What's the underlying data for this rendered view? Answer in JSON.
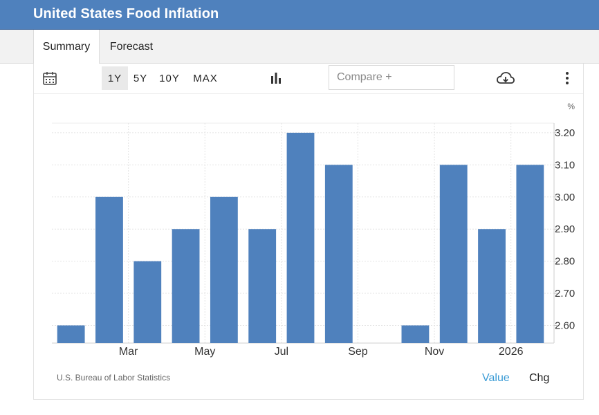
{
  "header": {
    "title": "United States Food Inflation"
  },
  "tabs": [
    {
      "label": "Summary"
    },
    {
      "label": "Forecast"
    }
  ],
  "toolbar": {
    "ranges": [
      "1Y",
      "5Y",
      "10Y",
      "MAX"
    ],
    "active_range": "1Y",
    "compare_placeholder": "Compare +"
  },
  "footer": {
    "source": "U.S. Bureau of Labor Statistics",
    "value_label": "Value",
    "chg_label": "Chg"
  },
  "colors": {
    "bar": "#4f81bd",
    "header": "#4f81bd",
    "link": "#3a9bd5"
  },
  "chart_data": {
    "type": "bar",
    "unit_label": "%",
    "categories": [
      "Jan 2025",
      "Feb 2025",
      "Mar 2025",
      "Apr 2025",
      "May 2025",
      "Jun 2025",
      "Jul 2025",
      "Aug 2025",
      "Sep 2025",
      "Oct 2025",
      "Nov 2025",
      "Dec 2025",
      "Jan 2026"
    ],
    "values": [
      2.6,
      3.0,
      2.8,
      2.9,
      3.0,
      2.9,
      3.2,
      3.1,
      null,
      2.6,
      3.1,
      2.9,
      3.1
    ],
    "x_tick_labels": [
      {
        "index": 1.5,
        "label": "Mar"
      },
      {
        "index": 3.5,
        "label": "May"
      },
      {
        "index": 5.5,
        "label": "Jul"
      },
      {
        "index": 7.5,
        "label": "Sep"
      },
      {
        "index": 9.5,
        "label": "Nov"
      },
      {
        "index": 11.5,
        "label": "2026"
      }
    ],
    "y_ticks": [
      "2.60",
      "2.70",
      "2.80",
      "2.90",
      "3.00",
      "3.10",
      "3.20"
    ],
    "ylim": [
      2.545,
      3.23
    ],
    "grid": true,
    "y_axis_position": "right"
  }
}
